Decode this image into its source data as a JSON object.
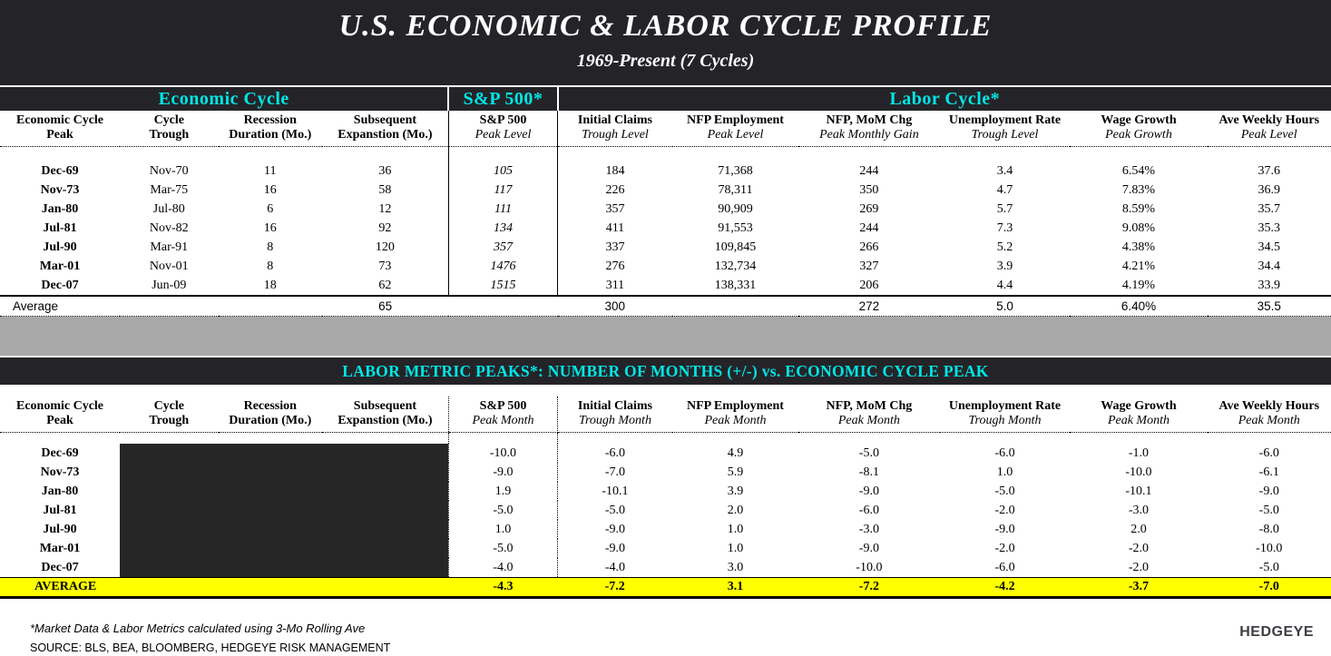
{
  "header": {
    "title": "U.S. ECONOMIC & LABOR CYCLE PROFILE",
    "subtitle": "1969-Present (7 Cycles)"
  },
  "chart_data": [
    {
      "type": "table",
      "title": "U.S. ECONOMIC & LABOR CYCLE PROFILE, 1969-Present (7 Cycles)",
      "group_headers": [
        "Economic Cycle",
        "S&P 500*",
        "Labor Cycle*"
      ],
      "columns": [
        {
          "line1": "Economic Cycle",
          "line2": "Peak"
        },
        {
          "line1": "Cycle",
          "line2": "Trough"
        },
        {
          "line1": "Recession",
          "line2": "Duration (Mo.)"
        },
        {
          "line1": "Subsequent",
          "line2": "Expanstion (Mo.)"
        },
        {
          "line1": "S&P 500",
          "line2": "Peak Level"
        },
        {
          "line1": "Initial Claims",
          "line2": "Trough Level"
        },
        {
          "line1": "NFP Employment",
          "line2": "Peak Level"
        },
        {
          "line1": "NFP, MoM Chg",
          "line2": "Peak Monthly Gain"
        },
        {
          "line1": "Unemployment Rate",
          "line2": "Trough Level"
        },
        {
          "line1": "Wage Growth",
          "line2": "Peak Growth"
        },
        {
          "line1": "Ave Weekly Hours",
          "line2": "Peak Level"
        }
      ],
      "rows": [
        [
          "Dec-69",
          "Nov-70",
          "11",
          "36",
          "105",
          "184",
          "71,368",
          "244",
          "3.4",
          "6.54%",
          "37.6"
        ],
        [
          "Nov-73",
          "Mar-75",
          "16",
          "58",
          "117",
          "226",
          "78,311",
          "350",
          "4.7",
          "7.83%",
          "36.9"
        ],
        [
          "Jan-80",
          "Jul-80",
          "6",
          "12",
          "111",
          "357",
          "90,909",
          "269",
          "5.7",
          "8.59%",
          "35.7"
        ],
        [
          "Jul-81",
          "Nov-82",
          "16",
          "92",
          "134",
          "411",
          "91,553",
          "244",
          "7.3",
          "9.08%",
          "35.3"
        ],
        [
          "Jul-90",
          "Mar-91",
          "8",
          "120",
          "357",
          "337",
          "109,845",
          "266",
          "5.2",
          "4.38%",
          "34.5"
        ],
        [
          "Mar-01",
          "Nov-01",
          "8",
          "73",
          "1476",
          "276",
          "132,734",
          "327",
          "3.9",
          "4.21%",
          "34.4"
        ],
        [
          "Dec-07",
          "Jun-09",
          "18",
          "62",
          "1515",
          "311",
          "138,331",
          "206",
          "4.4",
          "4.19%",
          "33.9"
        ]
      ],
      "average": [
        "Average",
        "",
        "",
        "65",
        "",
        "300",
        "",
        "272",
        "5.0",
        "6.40%",
        "35.5"
      ]
    },
    {
      "type": "table",
      "title": "LABOR METRIC PEAKS*:  NUMBER OF MONTHS (+/-) vs. ECONOMIC CYCLE PEAK",
      "columns": [
        {
          "line1": "Economic Cycle",
          "line2": "Peak"
        },
        {
          "line1": "Cycle",
          "line2": "Trough"
        },
        {
          "line1": "Recession",
          "line2": "Duration (Mo.)"
        },
        {
          "line1": "Subsequent",
          "line2": "Expanstion (Mo.)"
        },
        {
          "line1": "S&P 500",
          "line2": "Peak Month"
        },
        {
          "line1": "Initial Claims",
          "line2": "Trough Month"
        },
        {
          "line1": "NFP Employment",
          "line2": "Peak Month"
        },
        {
          "line1": "NFP, MoM Chg",
          "line2": "Peak Month"
        },
        {
          "line1": "Unemployment Rate",
          "line2": "Trough Month"
        },
        {
          "line1": "Wage Growth",
          "line2": "Peak Month"
        },
        {
          "line1": "Ave Weekly Hours",
          "line2": "Peak Month"
        }
      ],
      "rows": [
        [
          "Dec-69",
          "",
          "",
          "",
          "-10.0",
          "-6.0",
          "4.9",
          "-5.0",
          "-6.0",
          "-1.0",
          "-6.0"
        ],
        [
          "Nov-73",
          "",
          "",
          "",
          "-9.0",
          "-7.0",
          "5.9",
          "-8.1",
          "1.0",
          "-10.0",
          "-6.1"
        ],
        [
          "Jan-80",
          "",
          "",
          "",
          "1.9",
          "-10.1",
          "3.9",
          "-9.0",
          "-5.0",
          "-10.1",
          "-9.0"
        ],
        [
          "Jul-81",
          "",
          "",
          "",
          "-5.0",
          "-5.0",
          "2.0",
          "-6.0",
          "-2.0",
          "-3.0",
          "-5.0"
        ],
        [
          "Jul-90",
          "",
          "",
          "",
          "1.0",
          "-9.0",
          "1.0",
          "-3.0",
          "-9.0",
          "2.0",
          "-8.0"
        ],
        [
          "Mar-01",
          "",
          "",
          "",
          "-5.0",
          "-9.0",
          "1.0",
          "-9.0",
          "-2.0",
          "-2.0",
          "-10.0"
        ],
        [
          "Dec-07",
          "",
          "",
          "",
          "-4.0",
          "-4.0",
          "3.0",
          "-10.0",
          "-6.0",
          "-2.0",
          "-5.0"
        ]
      ],
      "average": [
        "AVERAGE",
        "",
        "",
        "",
        "-4.3",
        "-7.2",
        "3.1",
        "-7.2",
        "-4.2",
        "-3.7",
        "-7.0"
      ]
    }
  ],
  "footer": {
    "note": "*Market Data & Labor Metrics calculated using 3-Mo Rolling Ave",
    "source": "SOURCE:  BLS, BEA, BLOOMBERG, HEDGEYE RISK MANAGEMENT",
    "logo": "HEDGEYE"
  },
  "colors": {
    "banner_bg": "#242428",
    "accent_cyan": "#00E6E6",
    "divider_gray": "#A8A8A8",
    "highlight_yellow": "#FFFF00",
    "redacted_black": "#262626"
  }
}
